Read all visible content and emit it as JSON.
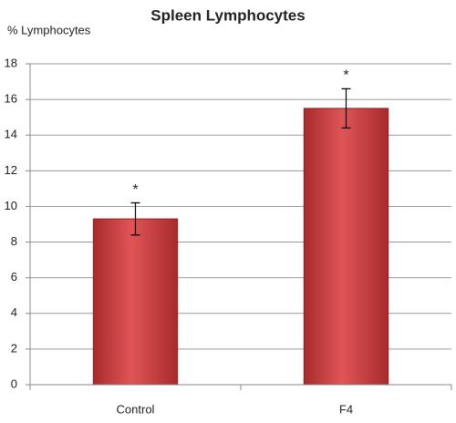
{
  "chart_data": {
    "type": "bar",
    "title": "Spleen Lymphocytes",
    "y_label": "% Lymphocytes",
    "categories": [
      "Control",
      "F4"
    ],
    "values": [
      9.3,
      15.5
    ],
    "errors": [
      0.9,
      1.1
    ],
    "annotations": [
      "*",
      "*"
    ],
    "color": "#c0393b",
    "ylim": [
      0,
      18
    ],
    "yticks": [
      0,
      2,
      4,
      6,
      8,
      10,
      12,
      14,
      16,
      18
    ],
    "grid": true
  }
}
